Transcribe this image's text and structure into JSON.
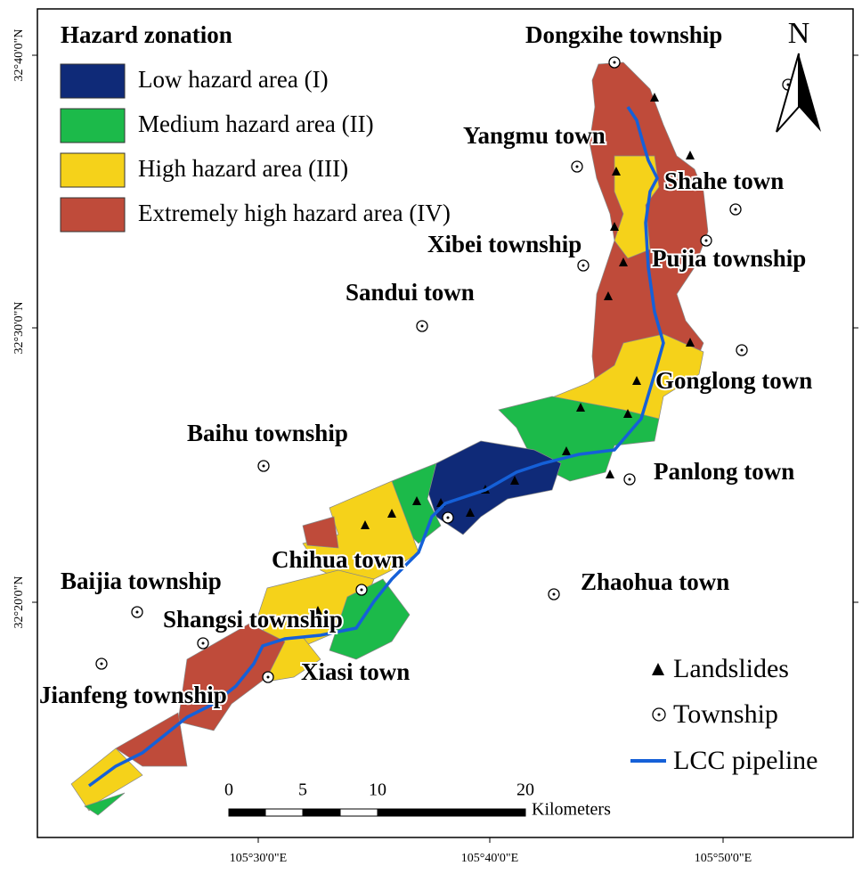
{
  "legend": {
    "title": "Hazard zonation",
    "items": [
      {
        "label": "Low hazard area (I)",
        "color": "#0f2a78"
      },
      {
        "label": "Medium hazard area (II)",
        "color": "#1cba4a"
      },
      {
        "label": "High hazard area (III)",
        "color": "#f5d21a"
      },
      {
        "label": "Extremely high hazard area (IV)",
        "color": "#bf4b3a"
      }
    ]
  },
  "towns": [
    "Dongxihe township",
    "Yangmu town",
    "Shahe town",
    "Xibei township",
    "Pujia township",
    "Sandui town",
    "Gonglong town",
    "Baihu township",
    "Panlong town",
    "Chihua town",
    "Zhaohua town",
    "Baijia township",
    "Shangsi township",
    "Xiasi town",
    "Jianfeng township"
  ],
  "symbols": {
    "landslides": "Landslides",
    "township": "Township",
    "pipeline": "LCC pipeline"
  },
  "north": "N",
  "scale": {
    "ticks": [
      "0",
      "5",
      "10",
      "20"
    ],
    "unit": "Kilometers"
  },
  "latitudes": [
    "32°40'0\"N",
    "32°30'0\"N",
    "32°20'0\"N"
  ],
  "longitudes": [
    "105°30'0\"E",
    "105°40'0\"E",
    "105°50'0\"E"
  ]
}
